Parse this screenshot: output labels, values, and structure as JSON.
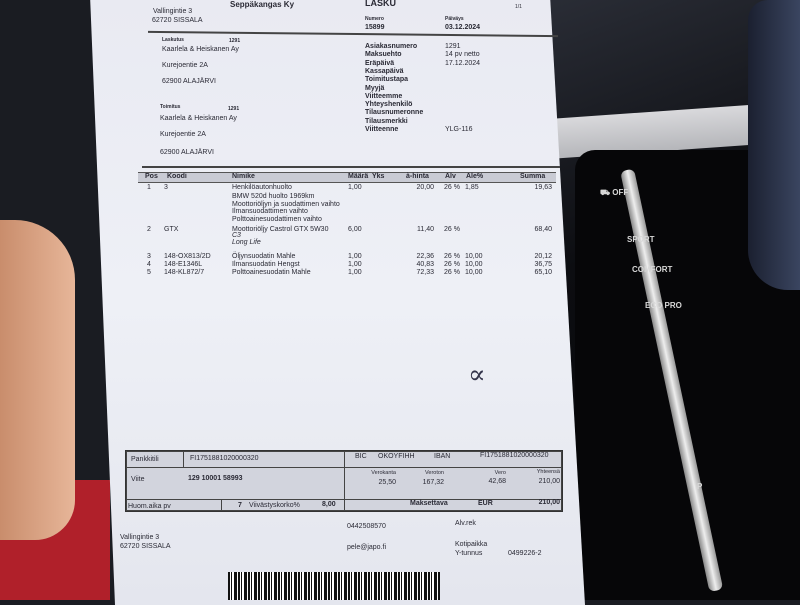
{
  "invoice": {
    "sender_name_partial": "Seppäkangas Ky",
    "sender_street": "Vallingintie 3",
    "sender_city": "62720 SISSALA",
    "doc_type": "LASKU",
    "page": "1/1",
    "number_label": "Numero",
    "number": "15899",
    "date_label": "Päiväys",
    "date": "03.12.2024",
    "billing": {
      "label": "Laskutus",
      "customer_no": "1291",
      "name": "Kaarlela & Heiskanen Ay",
      "street": "Kurejoentie 2A",
      "city": "62900 ALAJÄRVI"
    },
    "delivery": {
      "label": "Toimitus",
      "customer_no": "1291",
      "name": "Kaarlela & Heiskanen Ay",
      "street": "Kurejoentie 2A",
      "city": "62900 ALAJÄRVI"
    },
    "info": [
      {
        "label": "Asiakasnumero",
        "value": "1291"
      },
      {
        "label": "Maksuehto",
        "value": "14 pv netto"
      },
      {
        "label": "Eräpäivä",
        "value": "17.12.2024"
      },
      {
        "label": "Kassapäivä",
        "value": ""
      },
      {
        "label": "Toimitustapa",
        "value": ""
      },
      {
        "label": "Myyjä",
        "value": ""
      },
      {
        "label": "Viitteemme",
        "value": ""
      },
      {
        "label": "Yhteyshenkilö",
        "value": ""
      },
      {
        "label": "Tilausnumeronne",
        "value": ""
      },
      {
        "label": "Tilausmerkki",
        "value": ""
      },
      {
        "label": "Viitteenne",
        "value": "YLG-116"
      }
    ],
    "table": {
      "headers": [
        "Pos",
        "Koodi",
        "Nimike",
        "Määrä",
        "Yks",
        "à-hinta",
        "Alv",
        "Ale%",
        "Summa"
      ],
      "rows": [
        {
          "pos": "1",
          "code": "3",
          "name": "Henkilöautonhuolto",
          "qty": "1,00",
          "price": "20,00",
          "vat": "26 %",
          "disc": "1,85",
          "sum": "19,63"
        },
        {
          "pos": "2",
          "code": "GTX",
          "name": "Moottoriöljy Castrol GTX 5W30",
          "qty": "6,00",
          "price": "11,40",
          "vat": "26 %",
          "disc": "",
          "sum": "68,40"
        },
        {
          "pos": "3",
          "code": "148-OX813/2D",
          "name": "Öljynsuodatin Mahle",
          "qty": "1,00",
          "price": "22,36",
          "vat": "26 %",
          "disc": "10,00",
          "sum": "20,12"
        },
        {
          "pos": "4",
          "code": "148-E1346L",
          "name": "Ilmansuodatin Hengst",
          "qty": "1,00",
          "price": "40,83",
          "vat": "26 %",
          "disc": "10,00",
          "sum": "36,75"
        },
        {
          "pos": "5",
          "code": "148-KL872/7",
          "name": "Polttoainesuodatin Mahle",
          "qty": "1,00",
          "price": "72,33",
          "vat": "26 %",
          "disc": "10,00",
          "sum": "65,10"
        }
      ],
      "row1_notes": [
        "BMW 520d huolto 1969km",
        "Moottoriöljyn ja suodattimen vaihto",
        "Ilmansuodattimen vaihto",
        "Polttoainesuodattimen vaihto"
      ],
      "row2_notes": [
        "C3",
        "Long Life"
      ]
    },
    "handwritten_mark": "∝",
    "payment": {
      "account_label": "Pankkitili",
      "account": "FI1751881020000320",
      "bic_label": "BIC",
      "bic": "OKOYFIHH",
      "iban_label": "IBAN",
      "iban": "FI1751881020000320",
      "ref_label": "Viite",
      "ref": "129 10001 58993",
      "notice_label": "Huom.aika pv",
      "notice": "7",
      "interest_label": "Viivästyskorko%",
      "interest": "8,00",
      "tax_headers": [
        "Verokanta",
        "Veroton",
        "Vero",
        "Yhteensä"
      ],
      "tax_values": [
        "25,50",
        "167,32",
        "42,68",
        "210,00"
      ],
      "payable_label": "Maksettava",
      "currency": "EUR",
      "payable": "210,00"
    },
    "footer": {
      "street": "Vallingintie 3",
      "city": "62720 SISSALA",
      "phone": "0442508570",
      "email": "pele@japo.fi",
      "vat_reg": "Alv.rek",
      "domicile": "Kotipaikka",
      "business_id_label": "Y-tunnus",
      "business_id": "0499226-2"
    }
  },
  "car": {
    "buttons": [
      "OFF",
      "SPORT",
      "COMFORT",
      "ECO PRO",
      "P"
    ]
  }
}
